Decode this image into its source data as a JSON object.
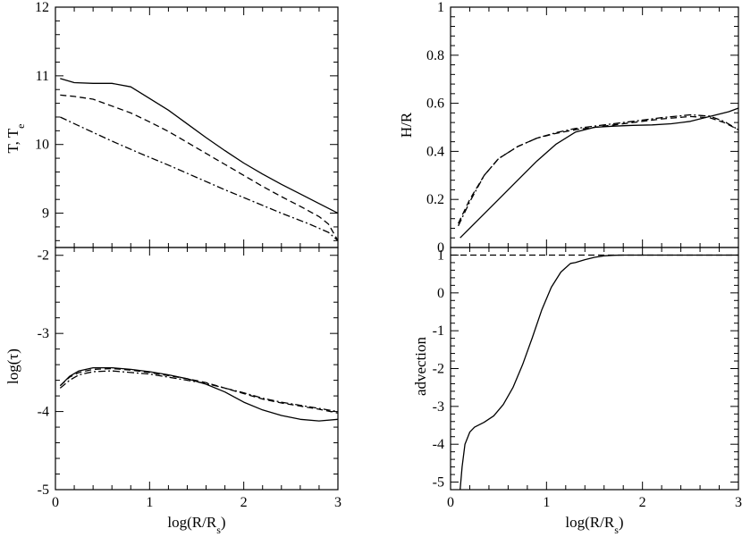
{
  "chart_data": [
    {
      "id": "temp",
      "type": "line",
      "xlabel": "",
      "ylabel": "T, T",
      "ylabel_sub": "e",
      "xlim": [
        0,
        3
      ],
      "ylim": [
        8.5,
        12
      ],
      "yticks": [
        9,
        10,
        11,
        12
      ],
      "ytick_labels": [
        "9",
        "10",
        "11",
        "12"
      ],
      "xticks": [],
      "xtick_labels": [],
      "series": [
        {
          "name": "solid",
          "style": "solid",
          "x": [
            0.05,
            0.2,
            0.4,
            0.6,
            0.8,
            1.0,
            1.2,
            1.4,
            1.6,
            1.8,
            2.0,
            2.2,
            2.4,
            2.6,
            2.8,
            3.0
          ],
          "y": [
            10.96,
            10.9,
            10.89,
            10.89,
            10.84,
            10.67,
            10.5,
            10.3,
            10.1,
            9.91,
            9.73,
            9.57,
            9.42,
            9.28,
            9.14,
            9.0
          ]
        },
        {
          "name": "dashed",
          "style": "dashed",
          "x": [
            0.05,
            0.2,
            0.4,
            0.6,
            0.8,
            1.0,
            1.2,
            1.4,
            1.6,
            1.8,
            2.0,
            2.2,
            2.4,
            2.6,
            2.8,
            2.9,
            3.0
          ],
          "y": [
            10.72,
            10.7,
            10.66,
            10.56,
            10.46,
            10.33,
            10.19,
            10.03,
            9.87,
            9.71,
            9.55,
            9.39,
            9.24,
            9.1,
            8.95,
            8.84,
            8.6
          ]
        },
        {
          "name": "dash-dot",
          "style": "dashdot",
          "x": [
            0.05,
            0.3,
            0.6,
            0.9,
            1.2,
            1.5,
            1.8,
            2.1,
            2.4,
            2.7,
            2.9,
            3.0
          ],
          "y": [
            10.4,
            10.24,
            10.05,
            9.87,
            9.7,
            9.52,
            9.34,
            9.17,
            9.0,
            8.84,
            8.72,
            8.6
          ]
        }
      ]
    },
    {
      "id": "hr",
      "type": "line",
      "xlabel": "",
      "ylabel": "H/R",
      "ylabel_sub": "",
      "xlim": [
        0,
        3
      ],
      "ylim": [
        0,
        1
      ],
      "yticks": [
        0,
        0.2,
        0.4,
        0.6,
        0.8,
        1
      ],
      "ytick_labels": [
        "0",
        "0.2",
        "0.4",
        "0.6",
        "0.8",
        "1"
      ],
      "xticks": [],
      "xtick_labels": [],
      "series": [
        {
          "name": "solid",
          "style": "solid",
          "x": [
            0.1,
            0.3,
            0.5,
            0.7,
            0.9,
            1.1,
            1.3,
            1.5,
            1.7,
            1.9,
            2.1,
            2.3,
            2.5,
            2.7,
            2.9,
            3.0
          ],
          "y": [
            0.04,
            0.12,
            0.2,
            0.28,
            0.36,
            0.43,
            0.48,
            0.5,
            0.505,
            0.508,
            0.51,
            0.515,
            0.525,
            0.545,
            0.565,
            0.58
          ]
        },
        {
          "name": "dashed",
          "style": "dashed",
          "x": [
            0.08,
            0.2,
            0.35,
            0.5,
            0.7,
            0.9,
            1.1,
            1.3,
            1.6,
            1.9,
            2.2,
            2.5,
            2.7,
            2.85,
            3.0
          ],
          "y": [
            0.1,
            0.2,
            0.3,
            0.37,
            0.42,
            0.455,
            0.475,
            0.49,
            0.505,
            0.52,
            0.535,
            0.545,
            0.54,
            0.52,
            0.49
          ]
        },
        {
          "name": "dash-dot",
          "style": "dashdot",
          "x": [
            0.08,
            0.2,
            0.35,
            0.5,
            0.7,
            0.9,
            1.1,
            1.3,
            1.6,
            1.9,
            2.2,
            2.5,
            2.7,
            2.85,
            3.0
          ],
          "y": [
            0.09,
            0.19,
            0.3,
            0.37,
            0.42,
            0.455,
            0.478,
            0.495,
            0.51,
            0.525,
            0.54,
            0.552,
            0.547,
            0.525,
            0.49
          ]
        }
      ]
    },
    {
      "id": "tau",
      "type": "line",
      "xlabel": "log(R/R",
      "xlabel_sub": "s",
      "xlabel_end": ")",
      "ylabel": "log(τ)",
      "ylabel_sub": "",
      "xlim": [
        0,
        3
      ],
      "ylim": [
        -5,
        -1.9
      ],
      "yticks": [
        -5,
        -4,
        -3,
        -2
      ],
      "ytick_labels": [
        "-5",
        "-4",
        "-3",
        "-2"
      ],
      "xticks": [
        0,
        1,
        2,
        3
      ],
      "xtick_labels": [
        "0",
        "1",
        "2",
        "3"
      ],
      "series": [
        {
          "name": "solid",
          "style": "solid",
          "x": [
            0.05,
            0.15,
            0.25,
            0.4,
            0.6,
            0.8,
            1.0,
            1.2,
            1.4,
            1.6,
            1.8,
            2.0,
            2.2,
            2.4,
            2.6,
            2.8,
            3.0
          ],
          "y": [
            -3.67,
            -3.55,
            -3.48,
            -3.44,
            -3.44,
            -3.46,
            -3.49,
            -3.53,
            -3.58,
            -3.65,
            -3.75,
            -3.88,
            -3.98,
            -4.05,
            -4.1,
            -4.12,
            -4.1
          ]
        },
        {
          "name": "dashed",
          "style": "dashed",
          "x": [
            0.05,
            0.15,
            0.25,
            0.4,
            0.6,
            0.8,
            1.0,
            1.2,
            1.4,
            1.6,
            1.8,
            2.0,
            2.2,
            2.4,
            2.6,
            2.8,
            3.0
          ],
          "y": [
            -3.67,
            -3.56,
            -3.5,
            -3.46,
            -3.45,
            -3.47,
            -3.5,
            -3.54,
            -3.58,
            -3.63,
            -3.7,
            -3.77,
            -3.84,
            -3.89,
            -3.93,
            -3.97,
            -4.02
          ]
        },
        {
          "name": "dash-dot",
          "style": "dashdot",
          "x": [
            0.05,
            0.15,
            0.25,
            0.4,
            0.6,
            0.8,
            1.0,
            1.2,
            1.4,
            1.6,
            1.8,
            2.0,
            2.2,
            2.4,
            2.6,
            2.8,
            3.0
          ],
          "y": [
            -3.7,
            -3.6,
            -3.53,
            -3.49,
            -3.48,
            -3.5,
            -3.52,
            -3.56,
            -3.6,
            -3.64,
            -3.7,
            -3.76,
            -3.83,
            -3.88,
            -3.92,
            -3.96,
            -4.0
          ]
        }
      ]
    },
    {
      "id": "adv",
      "type": "line",
      "xlabel": "log(R/R",
      "xlabel_sub": "s",
      "xlabel_end": ")",
      "ylabel": "advection",
      "ylabel_sub": "",
      "xlim": [
        0,
        3
      ],
      "ylim": [
        -5.2,
        1.2
      ],
      "yticks": [
        -5,
        -4,
        -3,
        -2,
        -1,
        0,
        1
      ],
      "ytick_labels": [
        "-5",
        "-4",
        "-3",
        "-2",
        "-1",
        "0",
        "1"
      ],
      "xticks": [
        0,
        1,
        2,
        3
      ],
      "xtick_labels": [
        "0",
        "1",
        "2",
        "3"
      ],
      "series": [
        {
          "name": "solid",
          "style": "solid",
          "x": [
            0.1,
            0.12,
            0.15,
            0.2,
            0.25,
            0.35,
            0.45,
            0.55,
            0.65,
            0.75,
            0.85,
            0.95,
            1.05,
            1.15,
            1.25,
            1.3,
            1.4,
            1.5,
            1.6,
            1.7,
            1.8,
            2.0,
            2.5,
            3.0
          ],
          "y": [
            -5.2,
            -4.6,
            -4.0,
            -3.68,
            -3.55,
            -3.42,
            -3.25,
            -2.95,
            -2.5,
            -1.9,
            -1.2,
            -0.45,
            0.15,
            0.55,
            0.78,
            0.8,
            0.88,
            0.94,
            0.98,
            0.995,
            1.0,
            1.0,
            1.0,
            1.0
          ]
        },
        {
          "name": "dashed",
          "style": "dashed",
          "x": [
            0.0,
            3.0
          ],
          "y": [
            1.0,
            1.0
          ]
        }
      ]
    }
  ]
}
